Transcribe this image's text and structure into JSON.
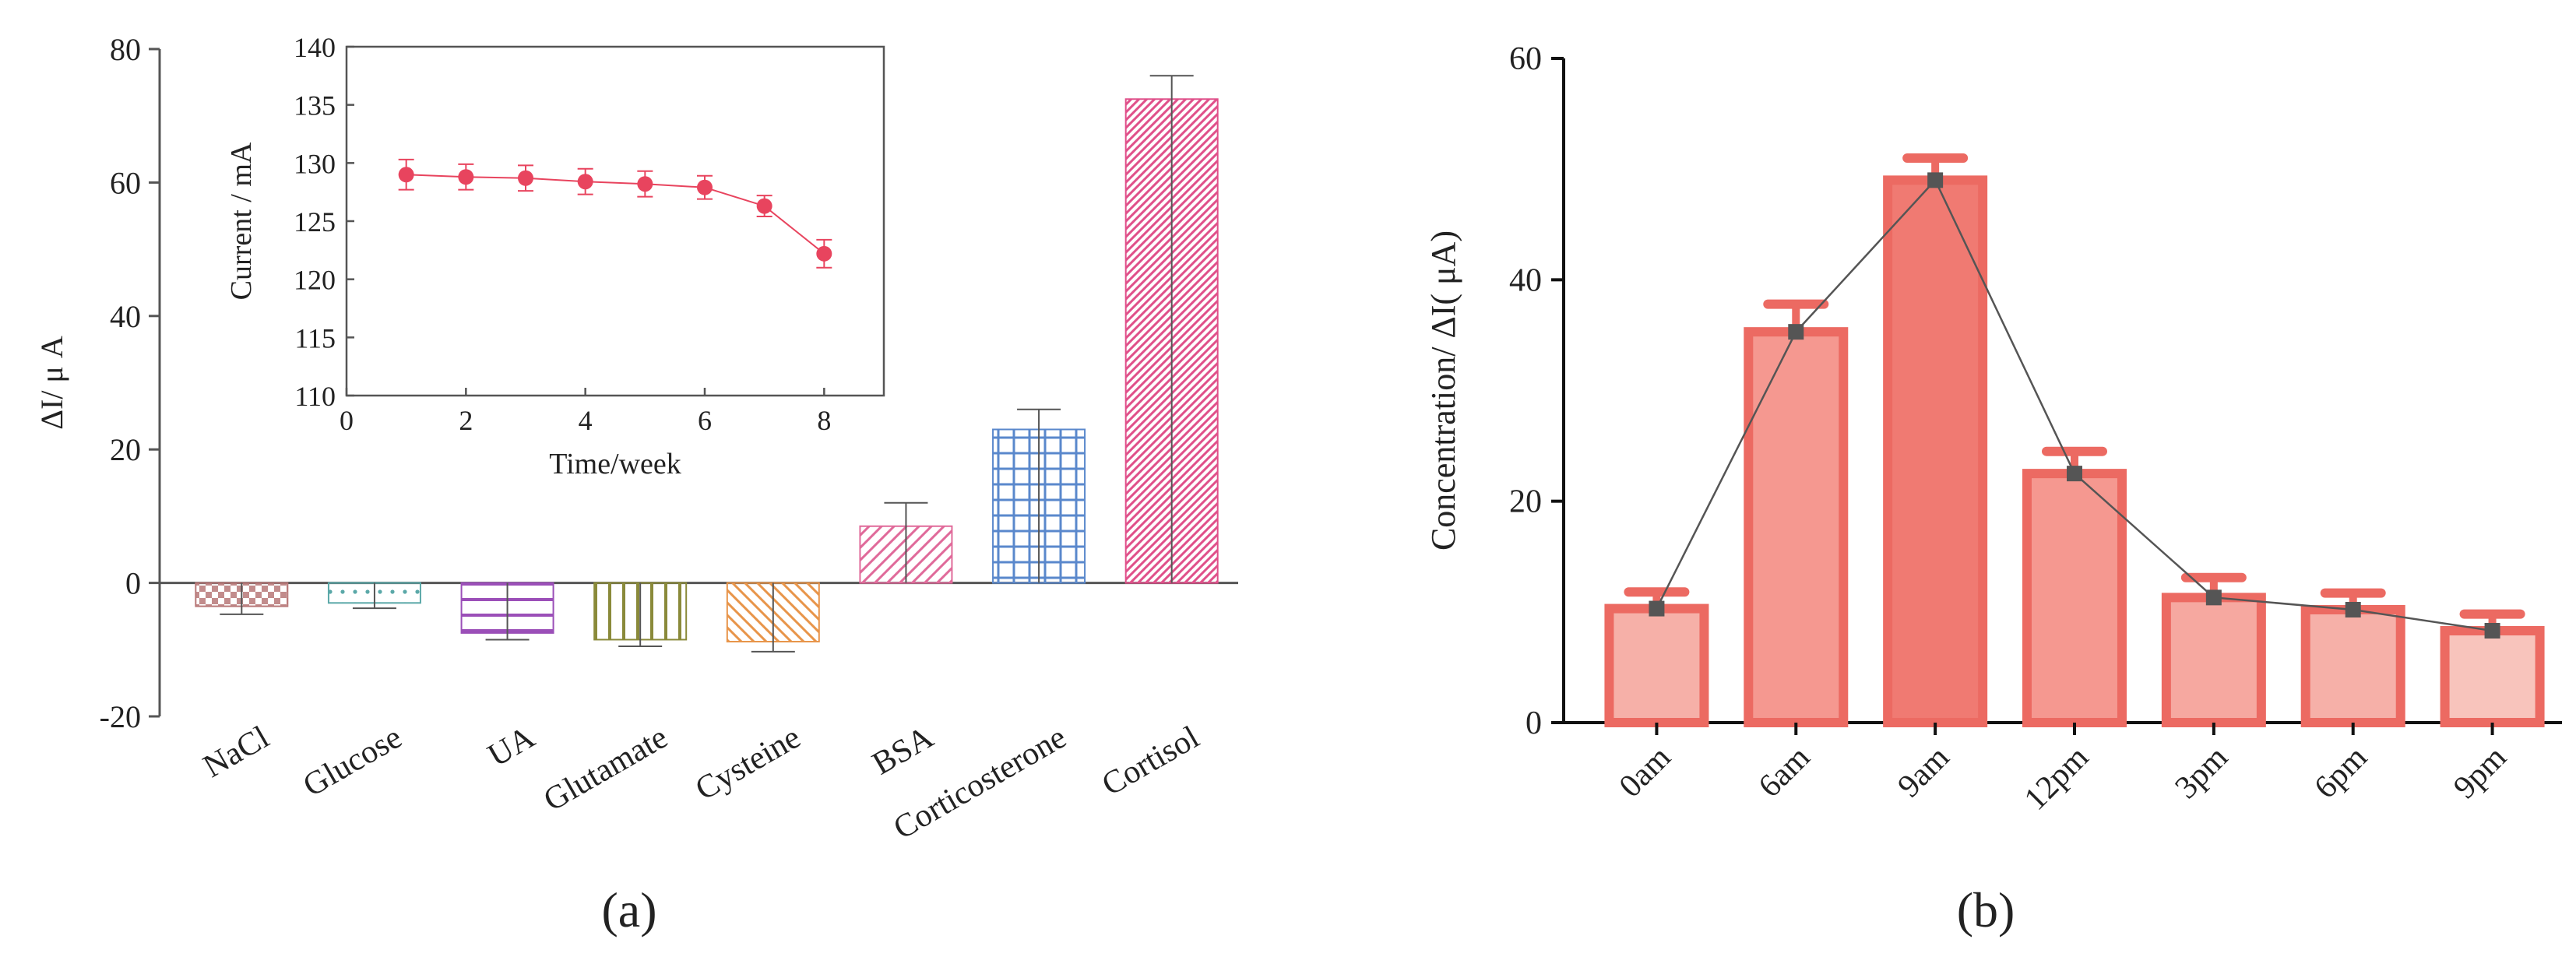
{
  "chart_data": [
    {
      "type": "bar",
      "panel_label": "(a)",
      "ylabel": "ΔI/ μ A",
      "ylim": [
        -20,
        80
      ],
      "yticks": [
        -20,
        0,
        20,
        40,
        60,
        80
      ],
      "categories": [
        "NaCl",
        "Glucose",
        "UA",
        "Glutamate",
        "Cysteine",
        "BSA",
        "Corticosterone",
        "Cortisol"
      ],
      "values": [
        -3.5,
        -3.0,
        -7.5,
        -8.5,
        -8.8,
        8.5,
        23.0,
        72.5
      ],
      "errors": [
        1.2,
        0.8,
        1.0,
        1.0,
        1.5,
        3.5,
        3.0,
        3.5
      ],
      "bar_colors": [
        "#b87878",
        "#5aa8a8",
        "#9b4fb8",
        "#8a8a3a",
        "#e8954a",
        "#e06a9a",
        "#5a88cc",
        "#e0508a"
      ],
      "bar_patterns": [
        "checker",
        "dots",
        "hlines",
        "vlines",
        "diag-left",
        "diag-right",
        "grid",
        "diag-right-dense"
      ]
    },
    {
      "type": "line",
      "panel_label": "inset",
      "xlabel": "Time/week",
      "ylabel": "Current / mA",
      "xlim": [
        0,
        9
      ],
      "ylim": [
        110,
        140
      ],
      "xticks": [
        0,
        2,
        4,
        6,
        8
      ],
      "yticks": [
        110,
        115,
        120,
        125,
        130,
        135,
        140
      ],
      "x": [
        1,
        2,
        3,
        4,
        5,
        6,
        7,
        8
      ],
      "values": [
        129.0,
        128.8,
        128.7,
        128.4,
        128.2,
        127.9,
        126.3,
        122.2
      ],
      "errors": [
        1.3,
        1.1,
        1.1,
        1.1,
        1.1,
        1.0,
        0.9,
        1.2
      ],
      "color": "#e8445e"
    },
    {
      "type": "bar",
      "panel_label": "(b)",
      "ylabel": "Concentration/ ΔI( μA)",
      "ylim": [
        0,
        60
      ],
      "yticks": [
        0,
        20,
        40,
        60
      ],
      "categories": [
        "0am",
        "6am",
        "9am",
        "12pm",
        "3pm",
        "6pm",
        "9pm"
      ],
      "values": [
        10.3,
        35.3,
        49.0,
        22.5,
        11.3,
        10.2,
        8.3
      ],
      "errors": [
        1.5,
        2.5,
        2.0,
        2.0,
        1.8,
        1.5,
        1.5
      ],
      "fill_colors": [
        "#f6b0a8",
        "#f59890",
        "#f07a72",
        "#f59890",
        "#f6a8a0",
        "#f6b0a8",
        "#f8c4bc"
      ],
      "edge_color": "#ec6a62",
      "line_color": "#555555"
    }
  ]
}
